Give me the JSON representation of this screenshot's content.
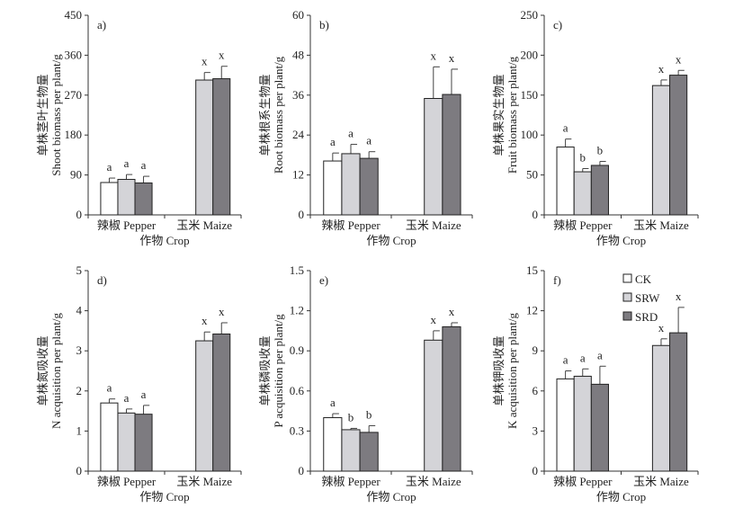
{
  "colors": {
    "CK": "#ffffff",
    "SRW": "#d4d4d8",
    "SRD": "#7d7b80",
    "axis": "#333333"
  },
  "legend": [
    "CK",
    "SRW",
    "SRD"
  ],
  "chart_data": [
    {
      "type": "bar",
      "panel": "a)",
      "ylabel_cn": "单株茎叶生物量",
      "ylabel": "Shoot biomass per plant/g",
      "xlabel": "作物 Crop",
      "categories": [
        "辣椒 Pepper",
        "玉米 Maize"
      ],
      "ylim": [
        0,
        450
      ],
      "yticks": [
        0,
        90,
        180,
        270,
        360,
        450
      ],
      "series": [
        {
          "name": "CK",
          "values": [
            73,
            null
          ],
          "errors": [
            10,
            null
          ],
          "letters": [
            "a",
            null
          ]
        },
        {
          "name": "SRW",
          "values": [
            80,
            304
          ],
          "errors": [
            11,
            17
          ],
          "letters": [
            "a",
            "x"
          ]
        },
        {
          "name": "SRD",
          "values": [
            72,
            307
          ],
          "errors": [
            15,
            28
          ],
          "letters": [
            "a",
            "x"
          ]
        }
      ]
    },
    {
      "type": "bar",
      "panel": "b)",
      "ylabel_cn": "单株根系生物量",
      "ylabel": "Root biomass per plant/g",
      "xlabel": "作物 Crop",
      "categories": [
        "辣椒 Pepper",
        "玉米 Maize"
      ],
      "ylim": [
        0,
        60
      ],
      "yticks": [
        0,
        12,
        24,
        36,
        48,
        60
      ],
      "series": [
        {
          "name": "CK",
          "values": [
            16.2,
            null
          ],
          "errors": [
            2.4,
            null
          ],
          "letters": [
            "a",
            null
          ]
        },
        {
          "name": "SRW",
          "values": [
            18.4,
            35
          ],
          "errors": [
            2.8,
            9.5
          ],
          "letters": [
            "a",
            "x"
          ]
        },
        {
          "name": "SRD",
          "values": [
            17,
            36.2
          ],
          "errors": [
            2,
            7.6
          ],
          "letters": [
            "a",
            "x"
          ]
        }
      ]
    },
    {
      "type": "bar",
      "panel": "c)",
      "ylabel_cn": "单株果实生物量",
      "ylabel": "Fruit biomass per plant/g",
      "xlabel": "作物 Crop",
      "categories": [
        "辣椒 Pepper",
        "玉米 Maize"
      ],
      "ylim": [
        0,
        250
      ],
      "yticks": [
        0,
        50,
        100,
        150,
        200,
        250
      ],
      "series": [
        {
          "name": "CK",
          "values": [
            85,
            null
          ],
          "errors": [
            10,
            null
          ],
          "letters": [
            "a",
            null
          ]
        },
        {
          "name": "SRW",
          "values": [
            54,
            162
          ],
          "errors": [
            4,
            7
          ],
          "letters": [
            "b",
            "x"
          ]
        },
        {
          "name": "SRD",
          "values": [
            62,
            175
          ],
          "errors": [
            5,
            6
          ],
          "letters": [
            "b",
            "x"
          ]
        }
      ]
    },
    {
      "type": "bar",
      "panel": "d)",
      "ylabel_cn": "单株氮吸收量",
      "ylabel": "N acquisition per plant/g",
      "xlabel": "作物 Crop",
      "categories": [
        "辣椒 Pepper",
        "玉米 Maize"
      ],
      "ylim": [
        0,
        5
      ],
      "yticks": [
        0,
        1,
        2,
        3,
        4,
        5
      ],
      "series": [
        {
          "name": "CK",
          "values": [
            1.7,
            null
          ],
          "errors": [
            0.1,
            null
          ],
          "letters": [
            "a",
            null
          ]
        },
        {
          "name": "SRW",
          "values": [
            1.45,
            3.25
          ],
          "errors": [
            0.1,
            0.22
          ],
          "letters": [
            "a",
            "x"
          ]
        },
        {
          "name": "SRD",
          "values": [
            1.42,
            3.42
          ],
          "errors": [
            0.22,
            0.28
          ],
          "letters": [
            "a",
            "x"
          ]
        }
      ]
    },
    {
      "type": "bar",
      "panel": "e)",
      "ylabel_cn": "单株磷吸收量",
      "ylabel": "P acquisition per plant/g",
      "xlabel": "作物 Crop",
      "categories": [
        "辣椒 Pepper",
        "玉米 Maize"
      ],
      "ylim": [
        0,
        1.5
      ],
      "yticks": [
        0,
        0.3,
        0.6,
        0.9,
        1.2,
        1.5
      ],
      "series": [
        {
          "name": "CK",
          "values": [
            0.4,
            null
          ],
          "errors": [
            0.03,
            null
          ],
          "letters": [
            "a",
            null
          ]
        },
        {
          "name": "SRW",
          "values": [
            0.31,
            0.98
          ],
          "errors": [
            0.01,
            0.07
          ],
          "letters": [
            "b",
            "x"
          ]
        },
        {
          "name": "SRD",
          "values": [
            0.29,
            1.08
          ],
          "errors": [
            0.05,
            0.03
          ],
          "letters": [
            "b",
            "x"
          ]
        }
      ]
    },
    {
      "type": "bar",
      "panel": "f)",
      "ylabel_cn": "单株钾吸收量",
      "ylabel": "K acquisition per plant/g",
      "xlabel": "作物 Crop",
      "categories": [
        "辣椒 Pepper",
        "玉米 Maize"
      ],
      "ylim": [
        0,
        15
      ],
      "yticks": [
        0,
        3,
        6,
        9,
        12,
        15
      ],
      "series": [
        {
          "name": "CK",
          "values": [
            6.9,
            null
          ],
          "errors": [
            0.6,
            null
          ],
          "letters": [
            "a",
            null
          ]
        },
        {
          "name": "SRW",
          "values": [
            7.1,
            9.4
          ],
          "errors": [
            0.55,
            0.5
          ],
          "letters": [
            "a",
            "x"
          ]
        },
        {
          "name": "SRD",
          "values": [
            6.5,
            10.35
          ],
          "errors": [
            1.35,
            1.9
          ],
          "letters": [
            "a",
            "x"
          ]
        }
      ]
    }
  ]
}
